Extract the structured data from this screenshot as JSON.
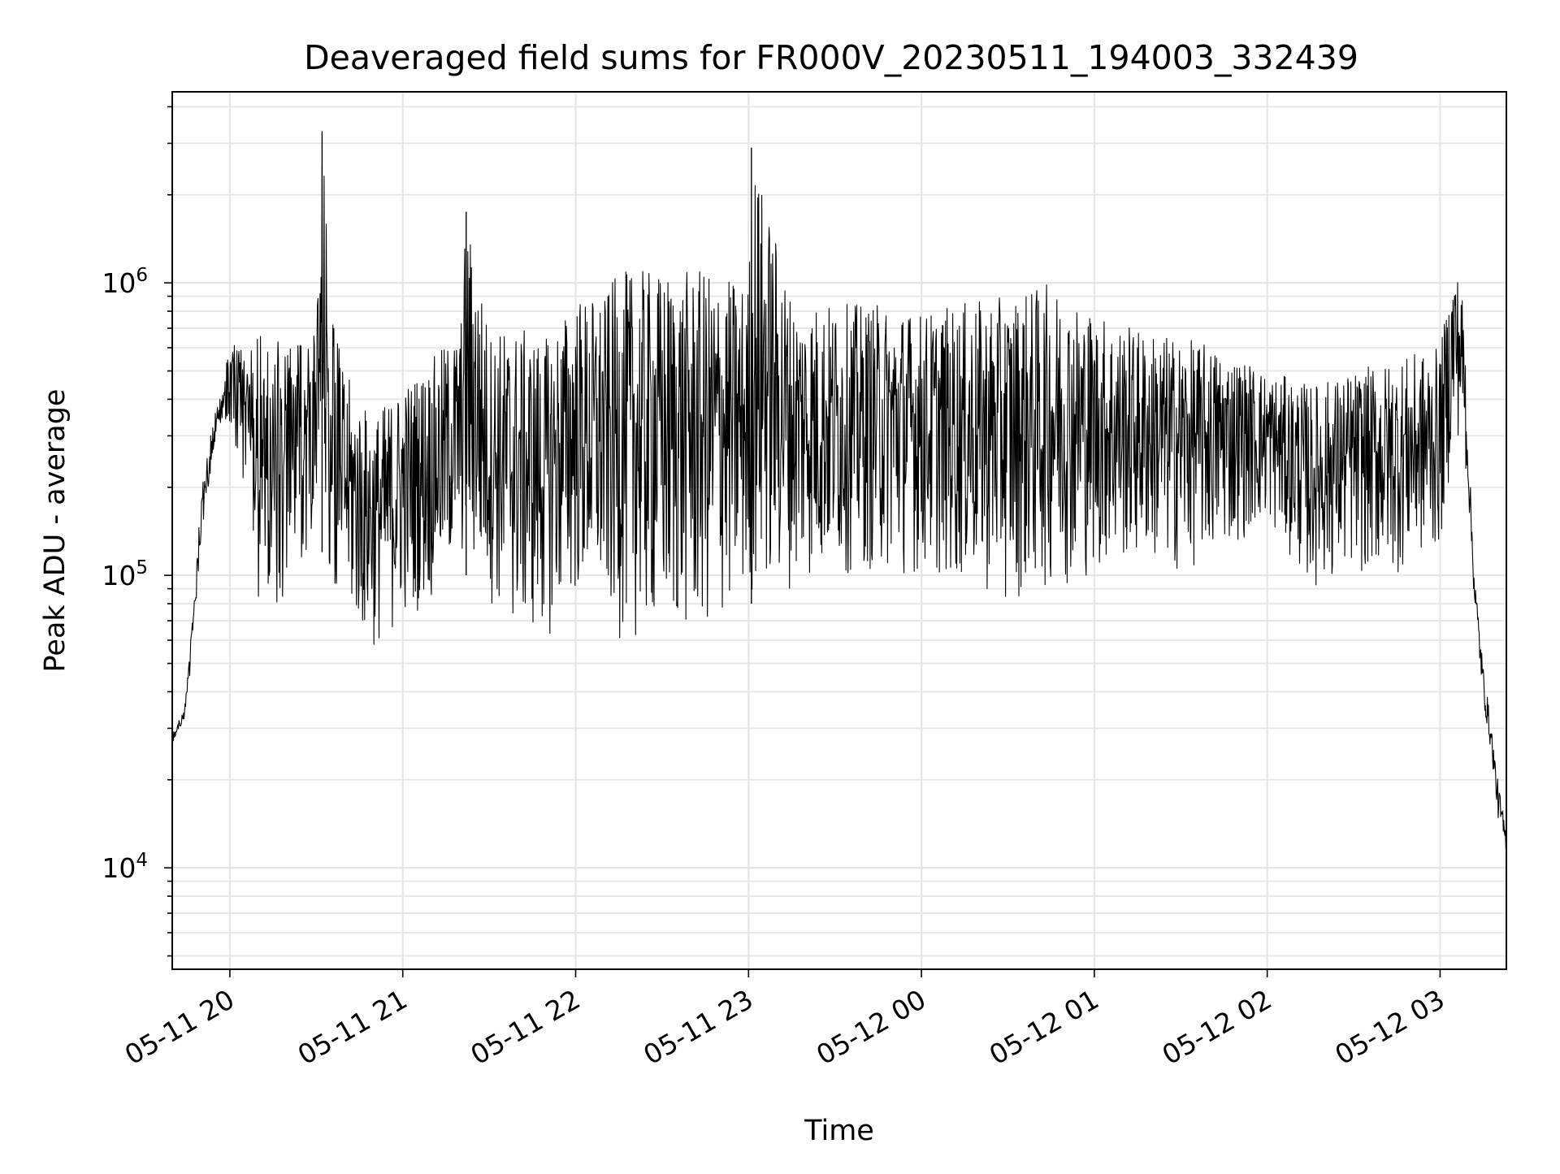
{
  "chart_data": {
    "type": "line",
    "title": "Deaveraged field sums for FR000V_20230511_194003_332439",
    "xlabel": "Time",
    "ylabel": "Peak ADU - average",
    "yscale": "log",
    "grid": true,
    "legend": "none",
    "line_color": "#000000",
    "grid_color": "#e6e6e6",
    "x_range": [
      "2023-05-11 19:40",
      "2023-05-12 03:23"
    ],
    "ylim": [
      4500,
      4500000
    ],
    "x_tick_labels": [
      "05-11 20",
      "05-11 21",
      "05-11 22",
      "05-11 23",
      "05-12 00",
      "05-12 01",
      "05-12 02",
      "05-12 03"
    ],
    "x_tick_values": [
      "2023-05-11 20:00",
      "2023-05-11 21:00",
      "2023-05-11 22:00",
      "2023-05-11 23:00",
      "2023-05-12 00:00",
      "2023-05-12 01:00",
      "2023-05-12 02:00",
      "2023-05-12 03:00"
    ],
    "y_major_ticks": [
      {
        "value": 10000,
        "label_base": "10",
        "label_exp": "4"
      },
      {
        "value": 100000,
        "label_base": "10",
        "label_exp": "5"
      },
      {
        "value": 1000000,
        "label_base": "10",
        "label_exp": "6"
      }
    ],
    "series": [
      {
        "x": [
          "2023-05-11 19:40",
          "2023-05-11 19:42",
          "2023-05-11 19:44",
          "2023-05-11 19:46",
          "2023-05-11 19:48",
          "2023-05-11 19:50",
          "2023-05-11 19:52",
          "2023-05-11 19:54",
          "2023-05-11 19:56",
          "2023-05-11 19:58",
          "2023-05-11 20:00",
          "2023-05-11 20:05",
          "2023-05-11 20:10",
          "2023-05-11 20:15",
          "2023-05-11 20:20",
          "2023-05-11 20:25",
          "2023-05-11 20:30",
          "2023-05-11 20:32",
          "2023-05-11 20:35",
          "2023-05-11 20:40",
          "2023-05-11 20:45",
          "2023-05-11 20:50",
          "2023-05-11 20:55",
          "2023-05-11 21:00",
          "2023-05-11 21:10",
          "2023-05-11 21:20",
          "2023-05-11 21:22",
          "2023-05-11 21:30",
          "2023-05-11 21:40",
          "2023-05-11 21:50",
          "2023-05-11 22:00",
          "2023-05-11 22:10",
          "2023-05-11 22:15",
          "2023-05-11 22:30",
          "2023-05-11 22:45",
          "2023-05-11 23:00",
          "2023-05-11 23:01",
          "2023-05-11 23:15",
          "2023-05-11 23:30",
          "2023-05-11 23:45",
          "2023-05-12 00:00",
          "2023-05-12 00:15",
          "2023-05-12 00:30",
          "2023-05-12 00:45",
          "2023-05-12 01:00",
          "2023-05-12 01:15",
          "2023-05-12 01:30",
          "2023-05-12 01:45",
          "2023-05-12 02:00",
          "2023-05-12 02:15",
          "2023-05-12 02:30",
          "2023-05-12 02:45",
          "2023-05-12 03:00",
          "2023-05-12 03:05",
          "2023-05-12 03:08",
          "2023-05-12 03:12",
          "2023-05-12 03:15",
          "2023-05-12 03:18",
          "2023-05-12 03:20",
          "2023-05-12 03:23"
        ],
        "low": [
          25000,
          28000,
          30000,
          38000,
          60000,
          100000,
          150000,
          200000,
          250000,
          300000,
          330000,
          200000,
          80000,
          60000,
          90000,
          110000,
          120000,
          120000,
          90000,
          70000,
          60000,
          55000,
          60000,
          70000,
          80000,
          110000,
          100000,
          80000,
          60000,
          60000,
          80000,
          70000,
          60000,
          60000,
          60000,
          80000,
          80000,
          90000,
          100000,
          100000,
          100000,
          90000,
          80000,
          90000,
          100000,
          110000,
          100000,
          120000,
          150000,
          90000,
          100000,
          100000,
          120000,
          300000,
          280000,
          60000,
          30000,
          20000,
          12000,
          10000
        ],
        "high": [
          30000,
          34000,
          36000,
          60000,
          130000,
          250000,
          320000,
          420000,
          500000,
          560000,
          600000,
          650000,
          700000,
          650000,
          600000,
          650000,
          700000,
          3300000,
          800000,
          500000,
          400000,
          350000,
          400000,
          450000,
          550000,
          700000,
          1750000,
          700000,
          700000,
          650000,
          900000,
          900000,
          1100000,
          1100000,
          1100000,
          1000000,
          2900000,
          900000,
          850000,
          850000,
          800000,
          850000,
          900000,
          1000000,
          800000,
          700000,
          650000,
          600000,
          500000,
          450000,
          500000,
          550000,
          600000,
          1200000,
          900000,
          130000,
          60000,
          35000,
          25000,
          15000
        ]
      }
    ]
  }
}
